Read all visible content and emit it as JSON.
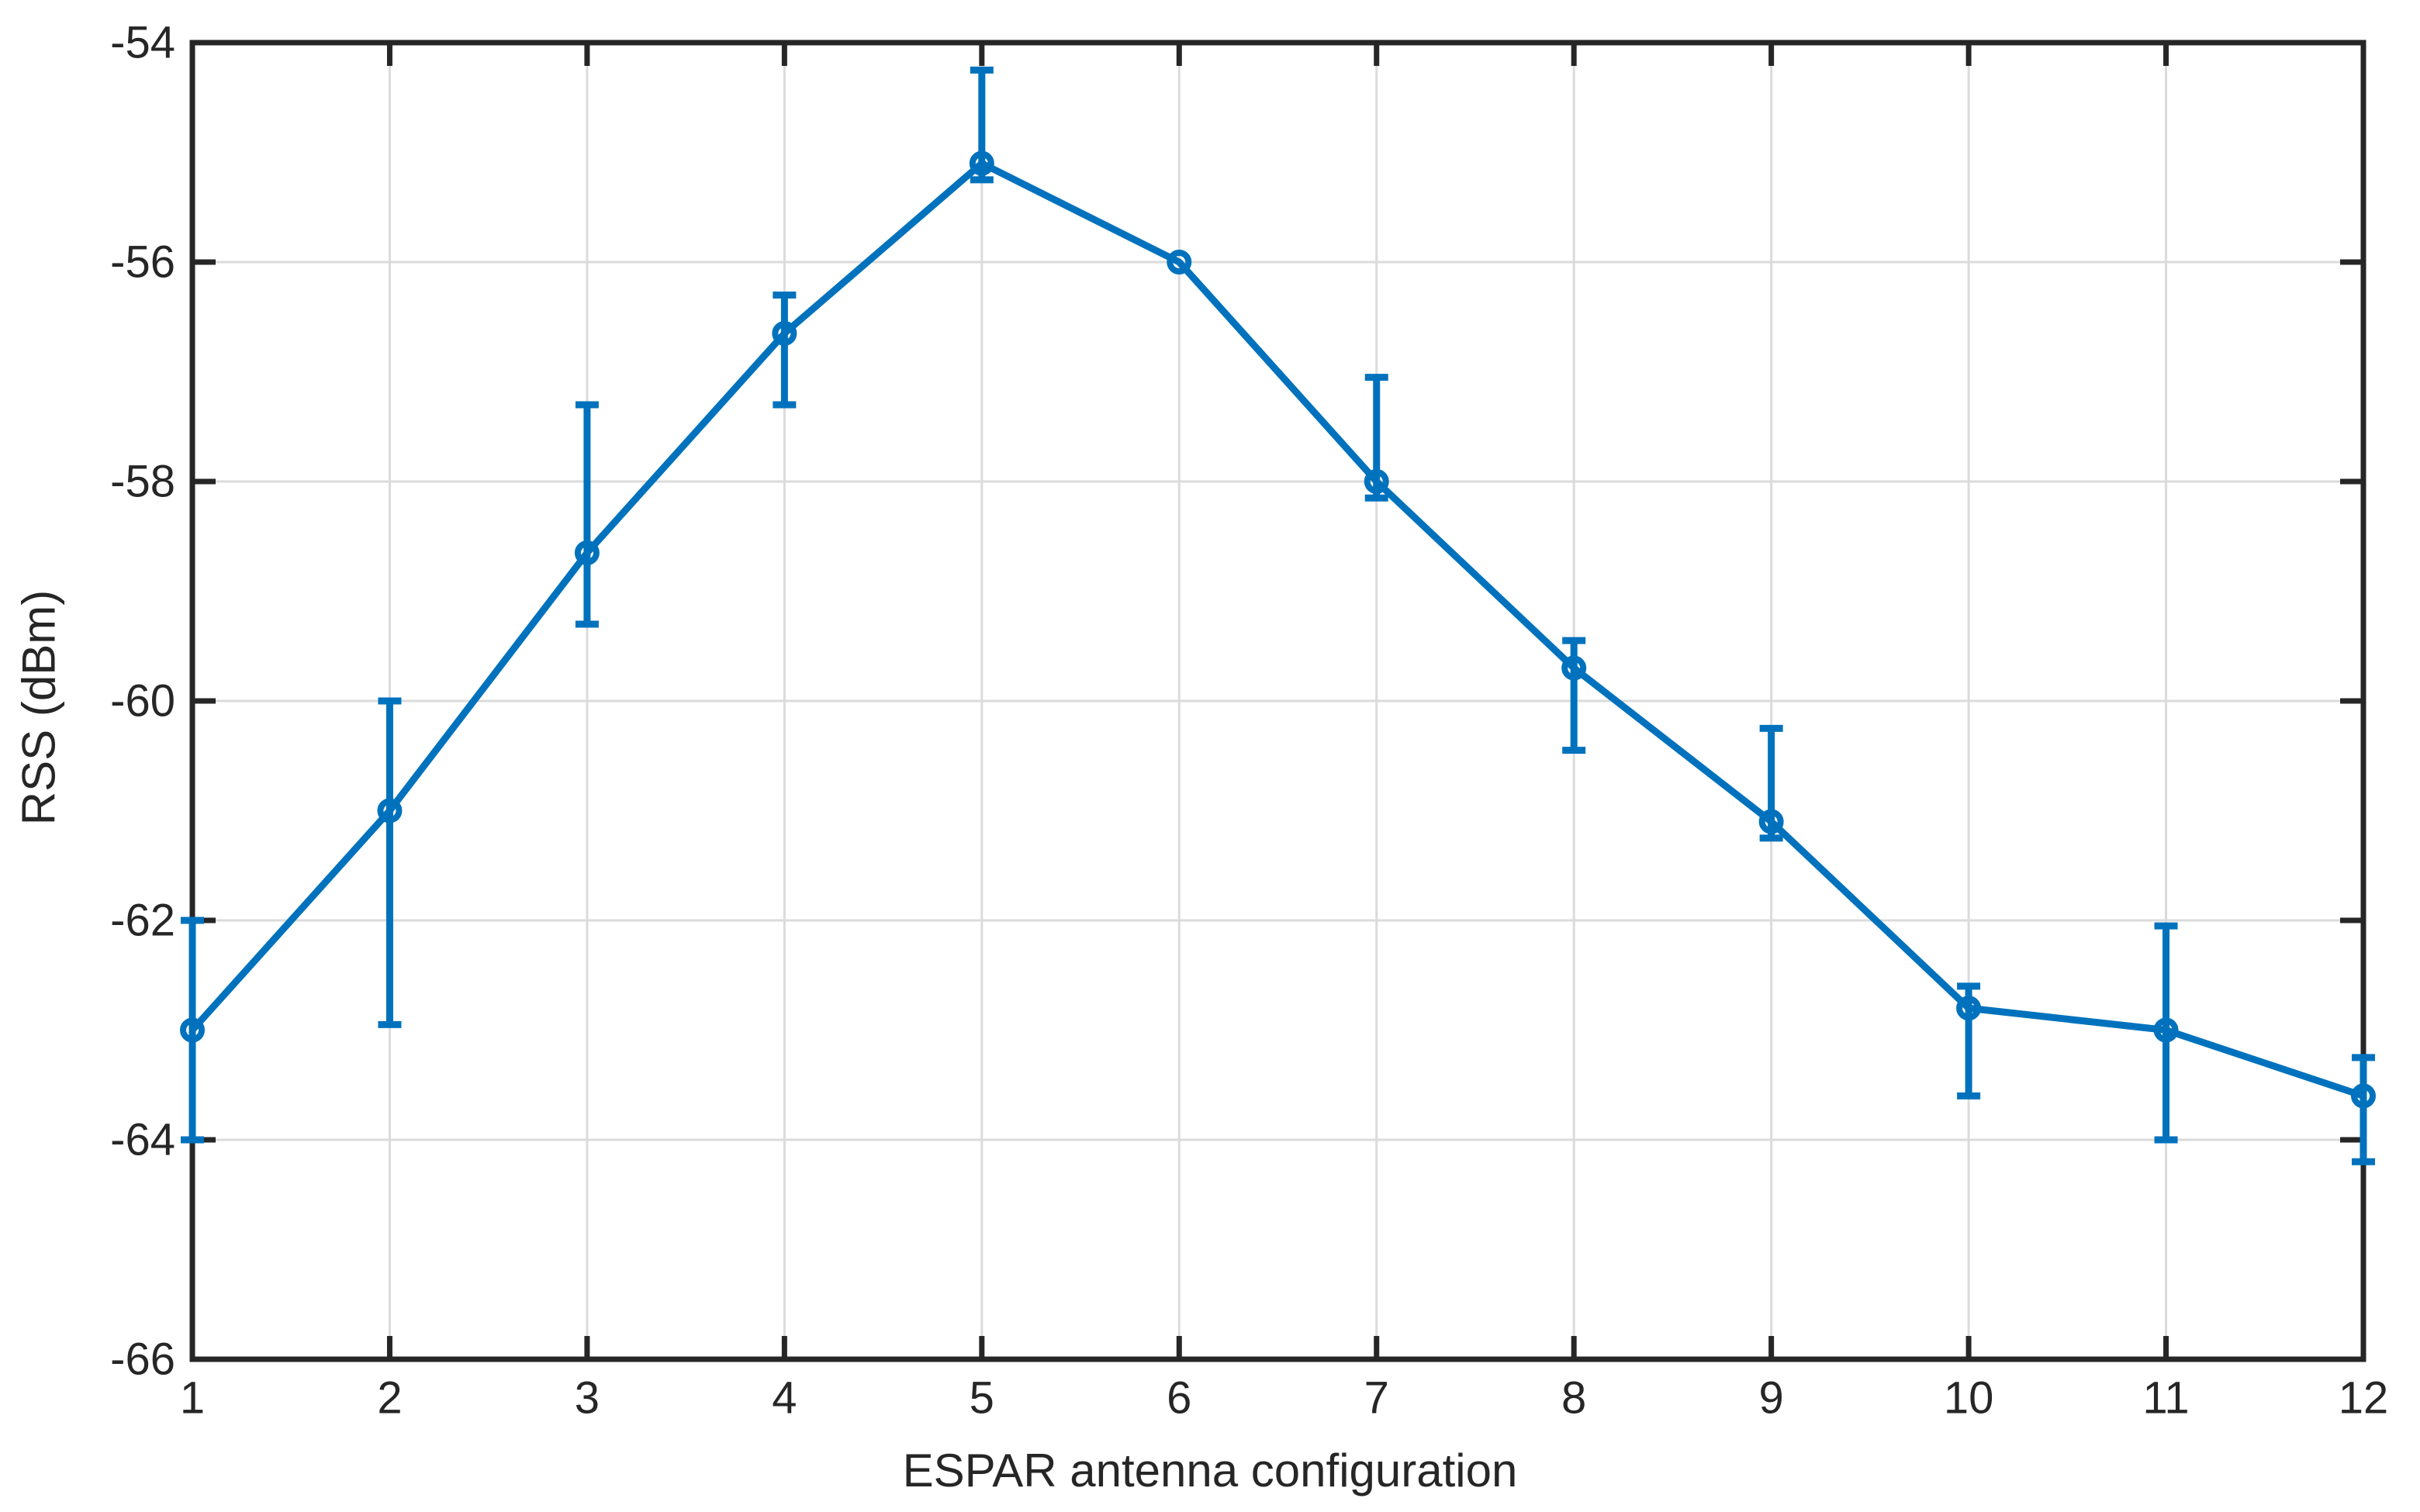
{
  "figure": {
    "background": "#FFFFFF"
  },
  "chart_data": {
    "type": "line",
    "subtype": "errorbar",
    "title": "",
    "xlabel": "ESPAR antenna configuration",
    "ylabel": "RSS (dBm)",
    "x": [
      1,
      2,
      3,
      4,
      5,
      6,
      7,
      8,
      9,
      10,
      11,
      12
    ],
    "series": [
      {
        "name": "RSS",
        "values": [
          -63.0,
          -61.0,
          -58.65,
          -56.65,
          -55.1,
          -56.0,
          -58.0,
          -59.7,
          -61.1,
          -62.8,
          -63.0,
          -63.6
        ],
        "err_low": [
          -64.0,
          -62.95,
          -59.3,
          -57.3,
          -55.25,
          -56.0,
          -58.15,
          -60.45,
          -61.25,
          -63.6,
          -64.0,
          -64.2
        ],
        "err_high": [
          -62.0,
          -60.0,
          -57.3,
          -56.3,
          -54.25,
          -56.0,
          -57.05,
          -59.45,
          -60.25,
          -62.6,
          -62.05,
          -63.25
        ]
      }
    ],
    "x_ticks": [
      1,
      2,
      3,
      4,
      5,
      6,
      7,
      8,
      9,
      10,
      11,
      12
    ],
    "y_ticks": [
      -66,
      -64,
      -62,
      -60,
      -58,
      -56,
      -54
    ],
    "xlim": [
      1,
      12
    ],
    "ylim": [
      -66,
      -54
    ],
    "grid": true,
    "legend_position": "none",
    "marker": "circle",
    "colors": {
      "line": "#0072BD",
      "axis": "#262626",
      "grid": "#DBDBDB",
      "tick_label": "#262626",
      "background": "#FFFFFF"
    }
  }
}
